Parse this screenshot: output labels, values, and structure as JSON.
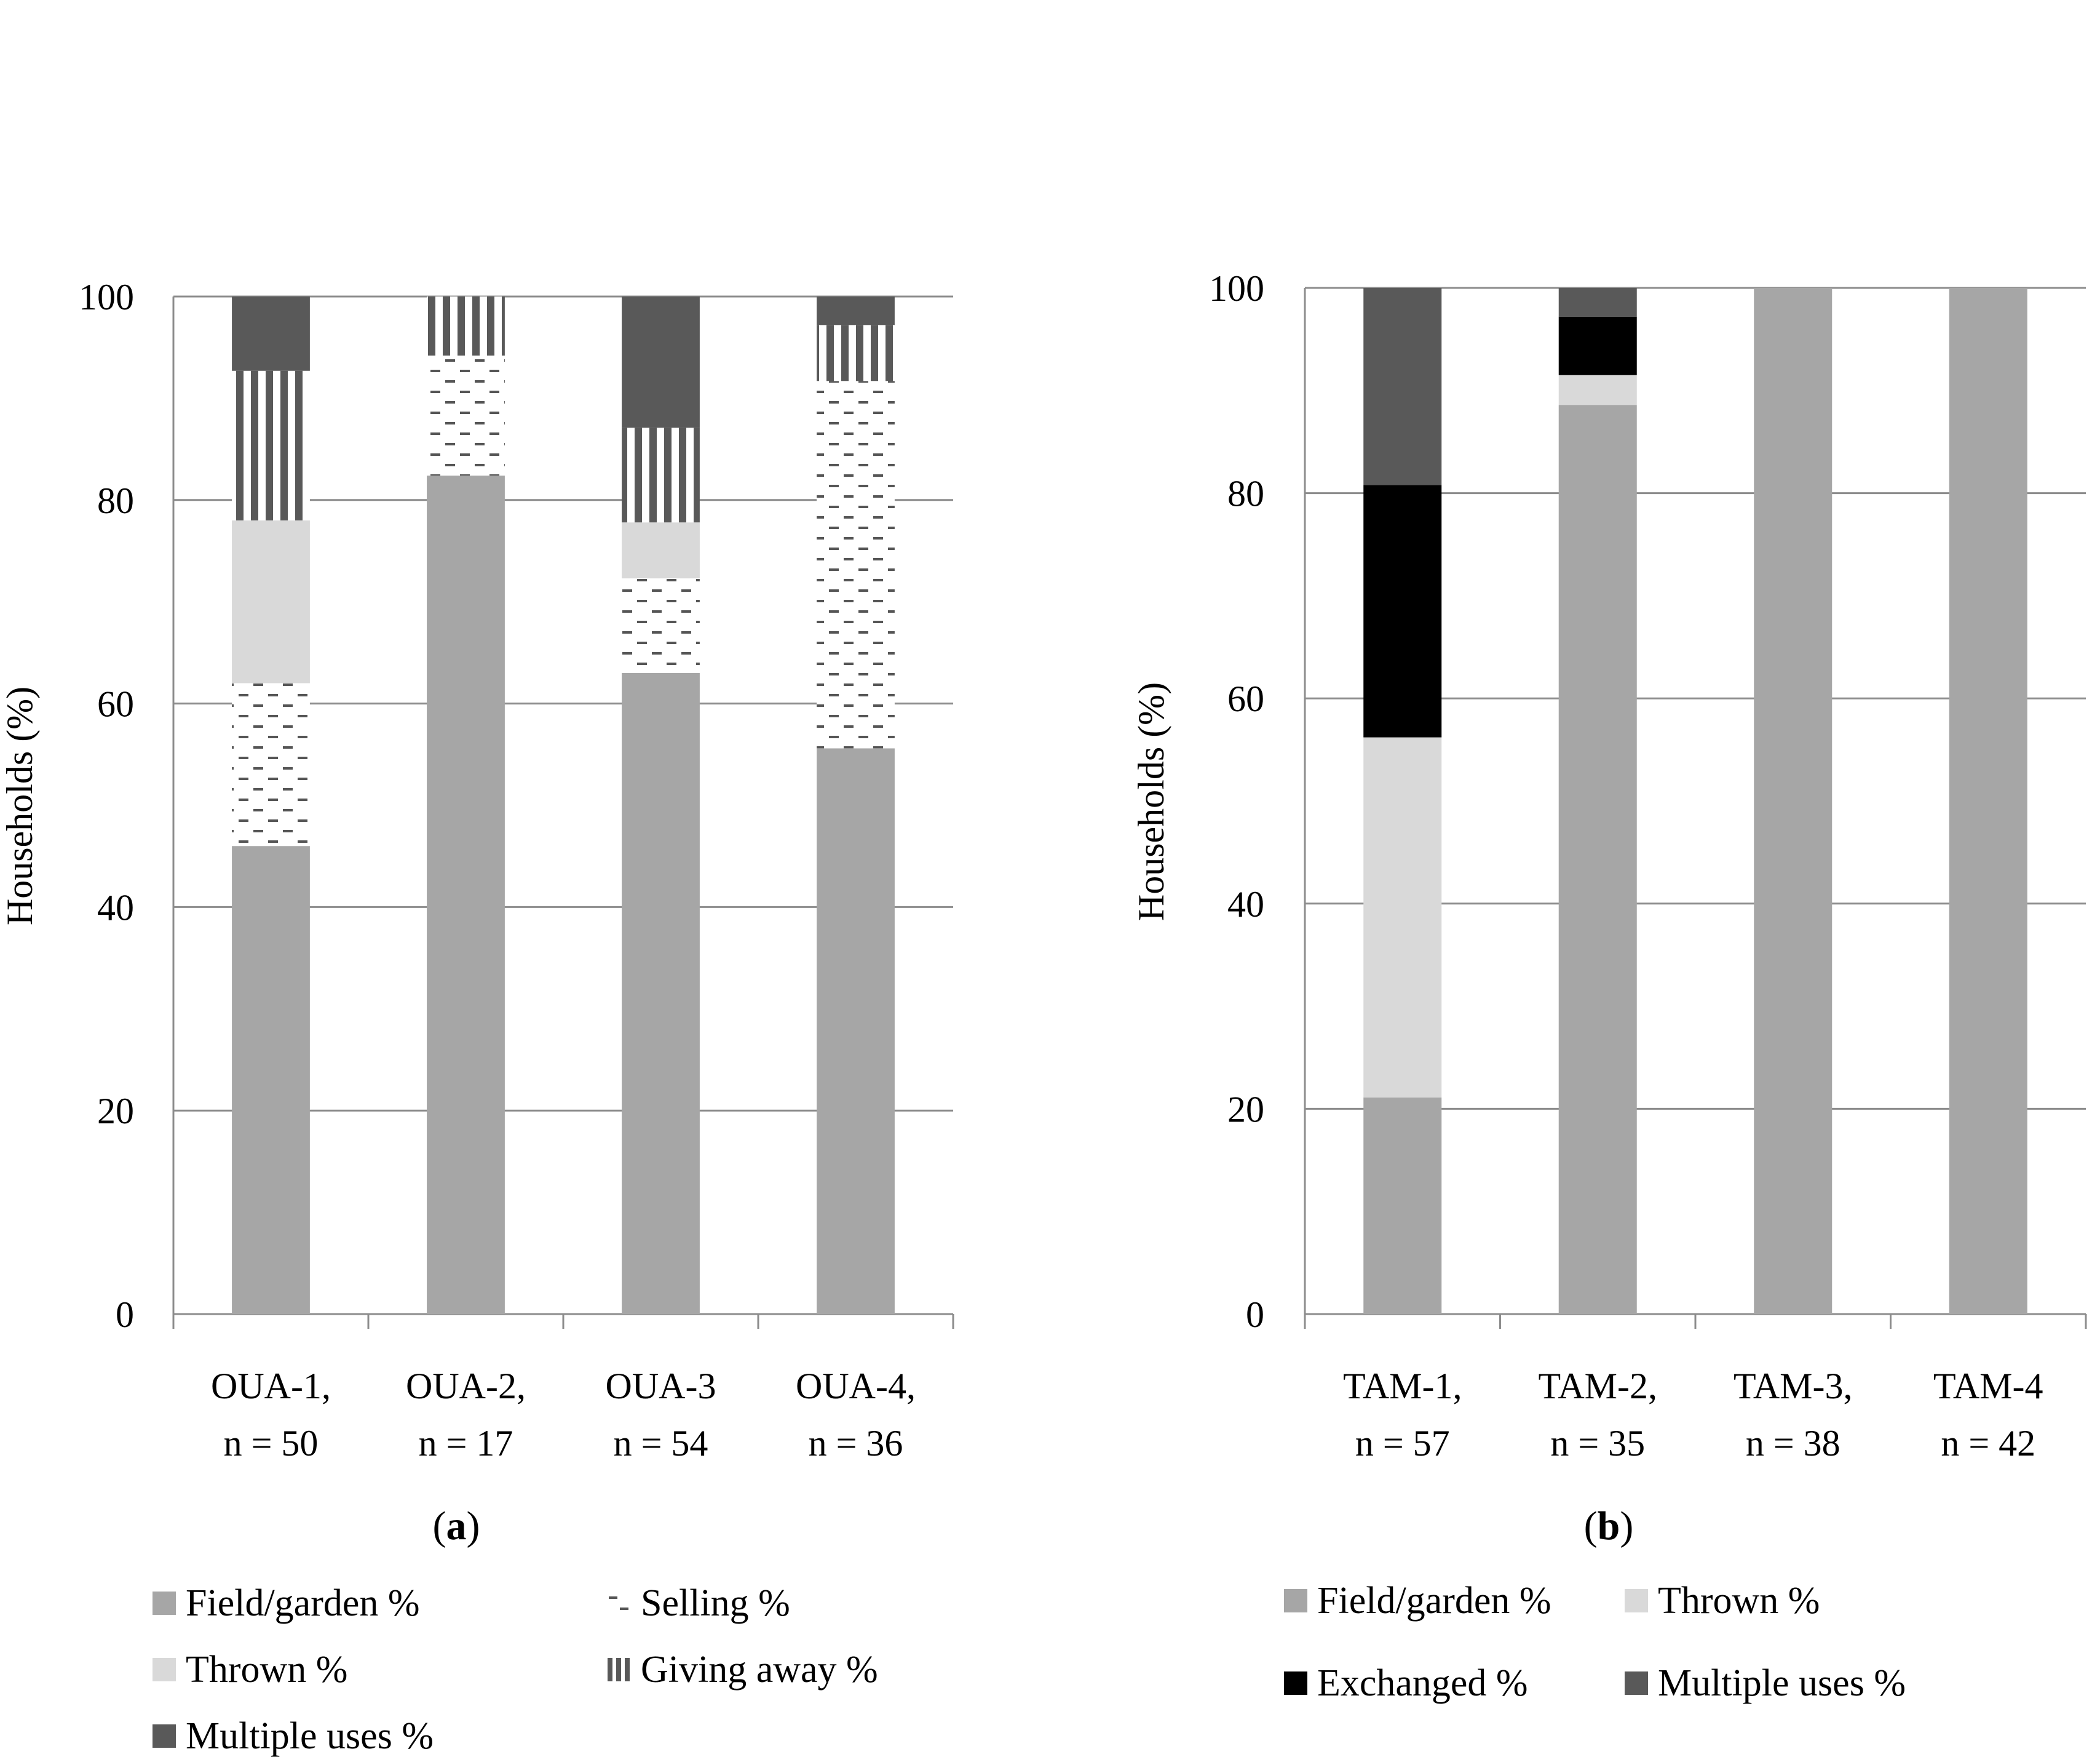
{
  "chart_data": [
    {
      "panel_label": "a",
      "type": "bar",
      "stacked": true,
      "ylabel": "Households (%)",
      "xlabel": "",
      "ylim": [
        0,
        100
      ],
      "yticks": [
        0,
        20,
        40,
        60,
        80,
        100
      ],
      "grid": true,
      "legend_placement": "top",
      "categories": [
        {
          "line1": "OUA-1,",
          "line2": "n = 50"
        },
        {
          "line1": "OUA-2,",
          "line2": "n = 17"
        },
        {
          "line1": "OUA-3",
          "line2": "n = 54"
        },
        {
          "line1": "OUA-4,",
          "line2": "n = 36"
        }
      ],
      "series": [
        {
          "name": "Field/garden %",
          "key": "field",
          "color": "#a6a6a6",
          "pattern": "solid",
          "values": [
            46,
            82.4,
            63,
            55.6
          ]
        },
        {
          "name": "Selling %",
          "key": "selling",
          "color": "#555555",
          "pattern": "dashes",
          "values": [
            16,
            11.8,
            9.3,
            36.1
          ]
        },
        {
          "name": "Thrown %",
          "key": "thrown",
          "color": "#d9d9d9",
          "pattern": "solid",
          "values": [
            16,
            0,
            5.5,
            0
          ]
        },
        {
          "name": "Giving away %",
          "key": "giving",
          "color": "#595959",
          "pattern": "vstripes",
          "values": [
            14.7,
            5.8,
            9.3,
            5.5
          ]
        },
        {
          "name": "Multiple uses %",
          "key": "multiple",
          "color": "#595959",
          "pattern": "solid",
          "values": [
            7.3,
            0,
            12.9,
            2.8
          ]
        }
      ]
    },
    {
      "panel_label": "b",
      "type": "bar",
      "stacked": true,
      "ylabel": "Households (%)",
      "xlabel": "",
      "ylim": [
        0,
        100
      ],
      "yticks": [
        0,
        20,
        40,
        60,
        80,
        100
      ],
      "grid": true,
      "legend_placement": "top",
      "categories": [
        {
          "line1": "TAM-1,",
          "line2": "n = 57"
        },
        {
          "line1": "TAM-2,",
          "line2": "n = 35"
        },
        {
          "line1": "TAM-3,",
          "line2": "n = 38"
        },
        {
          "line1": "TAM-4",
          "line2": "n = 42"
        }
      ],
      "series": [
        {
          "name": "Field/garden %",
          "key": "field",
          "color": "#a6a6a6",
          "pattern": "solid",
          "values": [
            21.1,
            88.6,
            100,
            100
          ]
        },
        {
          "name": "Thrown %",
          "key": "thrown",
          "color": "#d9d9d9",
          "pattern": "solid",
          "values": [
            35.1,
            2.9,
            0,
            0
          ]
        },
        {
          "name": "Exchanged %",
          "key": "exchanged",
          "color": "#000000",
          "pattern": "solid",
          "values": [
            24.6,
            5.7,
            0,
            0
          ]
        },
        {
          "name": "Multiple uses %",
          "key": "multiple",
          "color": "#595959",
          "pattern": "solid",
          "values": [
            19.2,
            2.8,
            0,
            0
          ]
        }
      ]
    }
  ]
}
